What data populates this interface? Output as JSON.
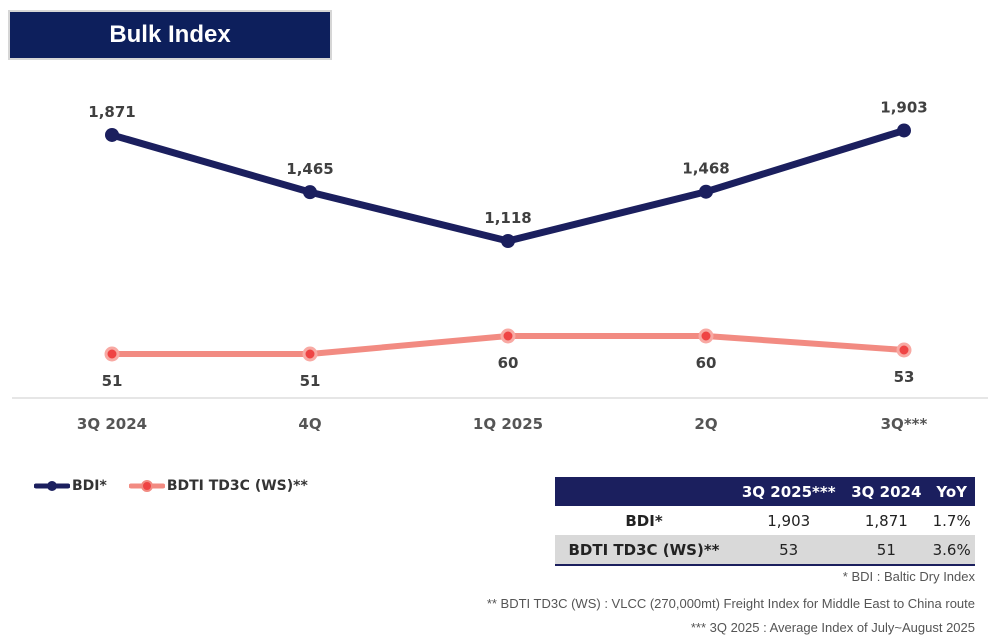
{
  "title": "Bulk Index",
  "chart_data": {
    "type": "line",
    "title": "Bulk Index",
    "categories": [
      "3Q 2024",
      "4Q",
      "1Q 2025",
      "2Q",
      "3Q***"
    ],
    "series": [
      {
        "name": "BDI*",
        "values": [
          1871,
          1465,
          1118,
          1468,
          1903
        ],
        "labels": [
          "1,871",
          "1,465",
          "1,118",
          "1,468",
          "1,903"
        ],
        "color": "#1b1f5e"
      },
      {
        "name": "BDTI TD3C (WS)**",
        "values": [
          51,
          51,
          60,
          60,
          53
        ],
        "labels": [
          "51",
          "51",
          "60",
          "60",
          "53"
        ],
        "color": "#f28b82"
      }
    ]
  },
  "table": {
    "headers": [
      "",
      "3Q 2025***",
      "3Q 2024",
      "YoY"
    ],
    "rows": [
      [
        "BDI*",
        "1,903",
        "1,871",
        "1.7%"
      ],
      [
        "BDTI TD3C (WS)**",
        "53",
        "51",
        "3.6%"
      ]
    ]
  },
  "notes": [
    "* BDI : Baltic Dry Index",
    "** BDTI TD3C (WS) : VLCC (270,000mt) Freight Index for Middle East to China route",
    "*** 3Q 2025 : Average Index of July~August 2025"
  ]
}
